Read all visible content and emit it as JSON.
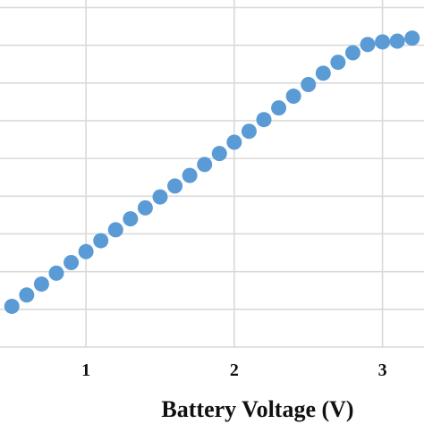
{
  "chart_data": {
    "type": "scatter",
    "xlabel": "Battery Voltage (V)",
    "ylabel": "",
    "title": "",
    "grid": true,
    "x_ticks": [
      1,
      2,
      3
    ],
    "x_tick_labels": [
      "1",
      "2",
      "3"
    ],
    "xlim": [
      0.42,
      3.28
    ],
    "ylim": [
      0,
      9.2
    ],
    "y_gridlines": [
      1,
      2,
      3,
      4,
      5,
      6,
      7,
      8,
      9
    ],
    "marker_color": "#5b9bd5",
    "series": [
      {
        "x": [
          0.5,
          0.6,
          0.7,
          0.8,
          0.9,
          1.0,
          1.1,
          1.2,
          1.3,
          1.4,
          1.5,
          1.6,
          1.7,
          1.8,
          1.9,
          2.0,
          2.1,
          2.2,
          2.3,
          2.4,
          2.5,
          2.6,
          2.7,
          2.8,
          2.9,
          3.0,
          3.1,
          3.2
        ],
        "y": [
          1.08,
          1.38,
          1.67,
          1.96,
          2.24,
          2.53,
          2.82,
          3.11,
          3.4,
          3.69,
          3.98,
          4.27,
          4.55,
          4.84,
          5.13,
          5.43,
          5.72,
          6.03,
          6.34,
          6.65,
          6.96,
          7.26,
          7.55,
          7.8,
          8.02,
          8.09,
          8.11,
          8.19
        ]
      }
    ]
  }
}
